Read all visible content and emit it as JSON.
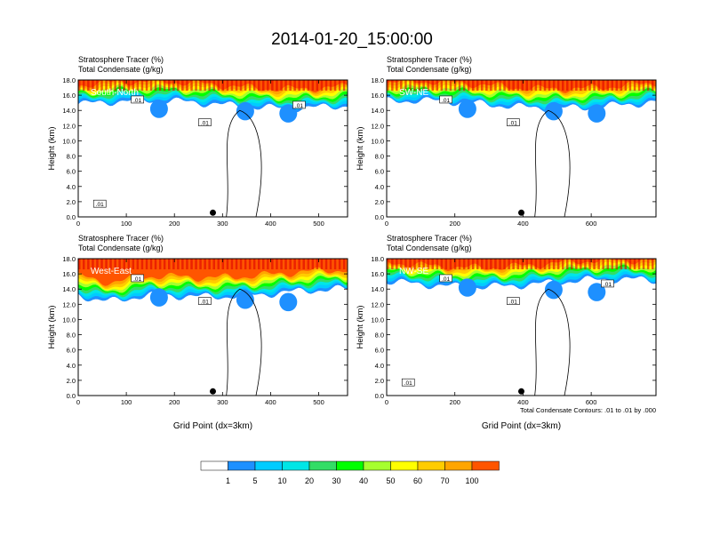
{
  "title": "2014-01-20_15:00:00",
  "colorbar": {
    "labels": [
      "1",
      "5",
      "10",
      "20",
      "30",
      "40",
      "50",
      "60",
      "70",
      "100"
    ],
    "colors": [
      "#ffffff",
      "#1e90ff",
      "#00ccff",
      "#00e6e6",
      "#33dd66",
      "#00ff00",
      "#a6ff2e",
      "#ffff00",
      "#ffcc00",
      "#ffa500",
      "#ff5500",
      "#ff0000"
    ]
  },
  "footnote": "Total Condensate Contours: .01 to .01 by .000",
  "chart_data": [
    {
      "type": "heatmap",
      "name": "South-North",
      "title": "Stratosphere Tracer   (%)",
      "subtitle": "Total Condensate   (g/kg)",
      "ylabel": "Height (km)",
      "xlabel": "",
      "xlim": [
        0,
        560
      ],
      "ylim": [
        0,
        18
      ],
      "xticks": [
        "0",
        "100",
        "200",
        "300",
        "400",
        "500"
      ],
      "yticks": [
        "0.0",
        "2.0",
        "4.0",
        "6.0",
        "8.0",
        "10.0",
        "12.0",
        "14.0",
        "16.0",
        "18.0"
      ],
      "marker_x": 280,
      "contour_labels": [
        ".01",
        ".01",
        ".01",
        ".01"
      ]
    },
    {
      "type": "heatmap",
      "name": "SW-NE",
      "title": "Stratosphere Tracer   (%)",
      "subtitle": "Total Condensate   (g/kg)",
      "ylabel": "Height (km)",
      "xlabel": "",
      "xlim": [
        0,
        790
      ],
      "ylim": [
        0,
        18
      ],
      "xticks": [
        "0",
        "200",
        "400",
        "600"
      ],
      "yticks": [
        "0.0",
        "2.0",
        "4.0",
        "6.0",
        "8.0",
        "10.0",
        "12.0",
        "14.0",
        "16.0",
        "18.0"
      ],
      "marker_x": 395,
      "contour_labels": [
        ".01",
        ".01"
      ]
    },
    {
      "type": "heatmap",
      "name": "West-East",
      "title": "Stratosphere Tracer   (%)",
      "subtitle": "Total Condensate   (g/kg)",
      "ylabel": "Height (km)",
      "xlabel": "Grid Point (dx=3km)",
      "xlim": [
        0,
        560
      ],
      "ylim": [
        0,
        18
      ],
      "xticks": [
        "0",
        "100",
        "200",
        "300",
        "400",
        "500"
      ],
      "yticks": [
        "0.0",
        "2.0",
        "4.0",
        "6.0",
        "8.0",
        "10.0",
        "12.0",
        "14.0",
        "16.0",
        "18.0"
      ],
      "marker_x": 280,
      "contour_labels": [
        ".01",
        ".01"
      ]
    },
    {
      "type": "heatmap",
      "name": "NW-SE",
      "title": "Stratosphere Tracer   (%)",
      "subtitle": "Total Condensate   (g/kg)",
      "ylabel": "Height (km)",
      "xlabel": "Grid Point (dx=3km)",
      "xlim": [
        0,
        790
      ],
      "ylim": [
        0,
        18
      ],
      "xticks": [
        "0",
        "200",
        "400",
        "600"
      ],
      "yticks": [
        "0.0",
        "2.0",
        "4.0",
        "6.0",
        "8.0",
        "10.0",
        "12.0",
        "14.0",
        "16.0",
        "18.0"
      ],
      "marker_x": 395,
      "contour_labels": [
        ".01",
        ".01",
        ".01",
        ".01"
      ]
    }
  ]
}
